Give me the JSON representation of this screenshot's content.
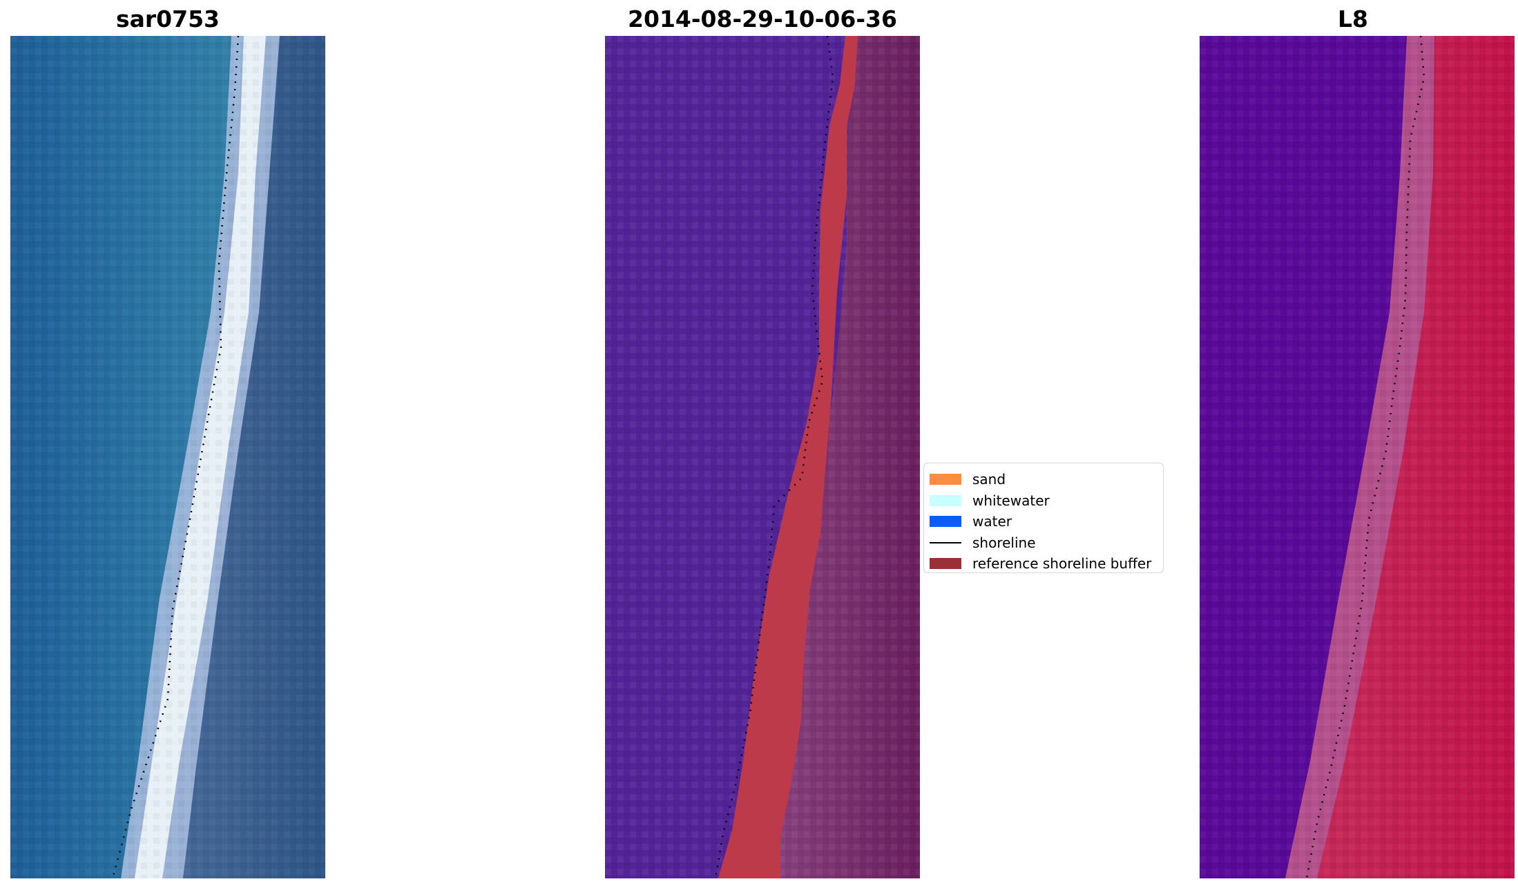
{
  "panels": {
    "left": {
      "title": "sar0753",
      "colors": {
        "water_deep": "#1e5f98",
        "water_light": "#3a8aab",
        "whitewater": "#e8f0f7",
        "foam": "#a9bfe0",
        "land": "#375a8a"
      }
    },
    "middle": {
      "title": "2014-08-29-10-06-36",
      "colors": {
        "water": "#532498",
        "buffer": "#bc3a4a",
        "land_dark": "#6a1f5e",
        "land_light": "#904a86"
      }
    },
    "right": {
      "title": "L8",
      "colors": {
        "water": "#5a0a98",
        "transition": "#b4508c",
        "land": "#c91c52",
        "land_dark": "#bd0f44"
      }
    }
  },
  "legend": {
    "items": [
      {
        "label": "sand",
        "color": "#ff8c3f",
        "kind": "patch"
      },
      {
        "label": "whitewater",
        "color": "#c8ffff",
        "kind": "patch"
      },
      {
        "label": "water",
        "color": "#0a5cff",
        "kind": "patch"
      },
      {
        "label": "shoreline",
        "color": "#000000",
        "kind": "line"
      },
      {
        "label": "reference shoreline buffer",
        "color": "#9a3036",
        "kind": "patch"
      }
    ]
  }
}
